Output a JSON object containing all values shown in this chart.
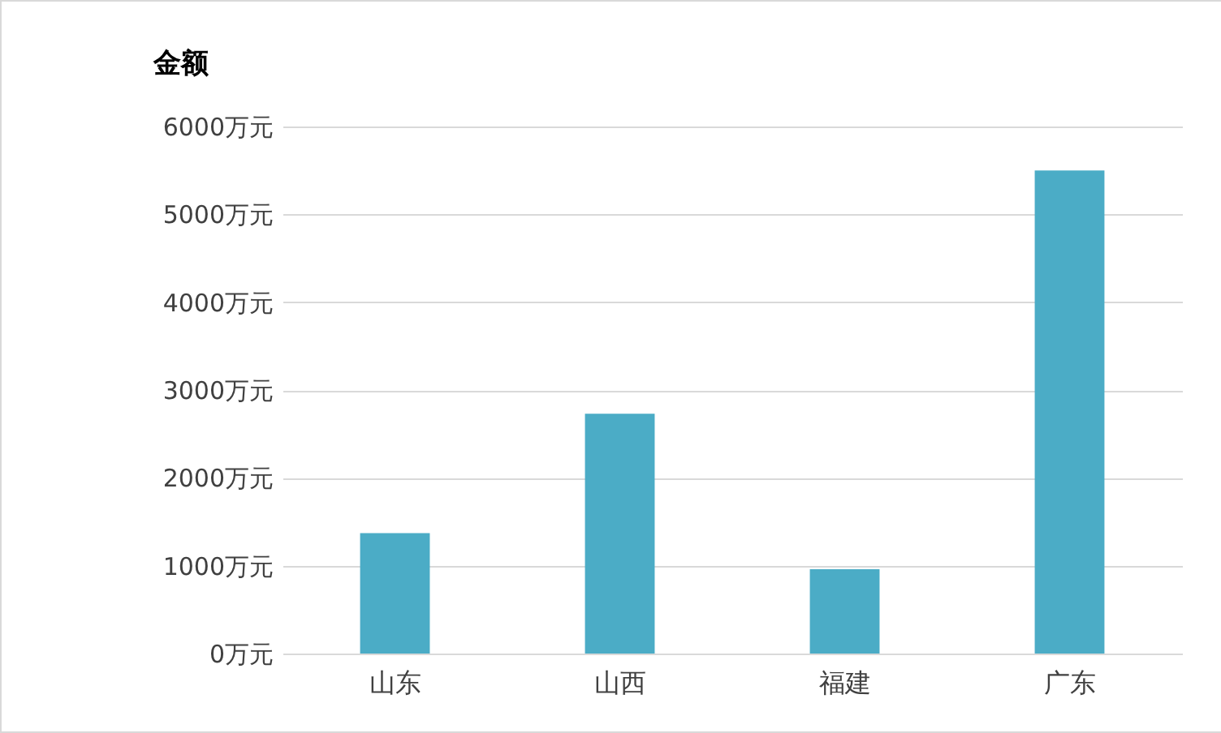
{
  "chart_data": {
    "type": "bar",
    "ylabel": "金额",
    "categories": [
      "山东",
      "山西",
      "福建",
      "广东"
    ],
    "values": [
      1370,
      2730,
      960,
      5500
    ],
    "color": "#4bacc6",
    "ylim": [
      0,
      6000
    ],
    "yticks": [
      {
        "value": 0,
        "label": "0万元"
      },
      {
        "value": 1000,
        "label": "1000万元"
      },
      {
        "value": 2000,
        "label": "2000万元"
      },
      {
        "value": 3000,
        "label": "3000万元"
      },
      {
        "value": 4000,
        "label": "4000万元"
      },
      {
        "value": 5000,
        "label": "5000万元"
      },
      {
        "value": 6000,
        "label": "6000万元"
      }
    ],
    "grid": "y"
  }
}
